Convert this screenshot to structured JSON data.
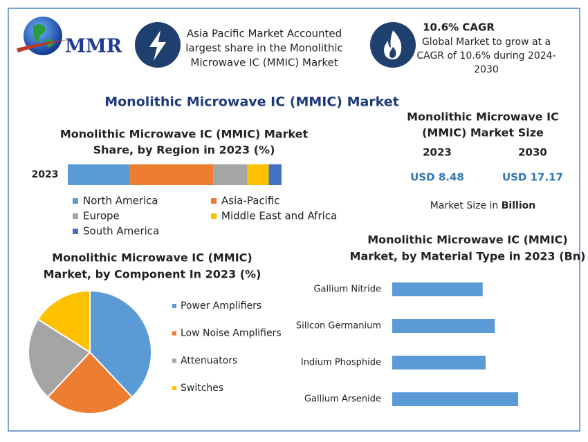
{
  "header": {
    "logo": "MMR",
    "info1": [
      "Asia Pacific Market Accounted",
      "largest share in the Monolithic",
      "Microwave IC (MMIC) Market"
    ],
    "info2_title": "10.6% CAGR",
    "info2": [
      "Global Market to grow at a",
      "CAGR of 10.6% during 2024-",
      "2030"
    ]
  },
  "title": "Monolithic Microwave IC (MMIC) Market",
  "market_size": {
    "title": [
      "Monolithic Microwave IC",
      "(MMIC) Market Size"
    ],
    "years": [
      "2023",
      "2030"
    ],
    "values": [
      "USD 8.48",
      "USD 17.17"
    ],
    "note": [
      "Market Size in",
      "Billion"
    ]
  },
  "chart_data": [
    {
      "type": "stacked-bar",
      "title": [
        "Monolithic Microwave IC (MMIC) Market",
        "Share, by Region in 2023 (%)"
      ],
      "categories": [
        "2023"
      ],
      "series": [
        {
          "name": "North America",
          "color": "#5b9bd5",
          "values": [
            29
          ]
        },
        {
          "name": "Asia-Pacific",
          "color": "#ed7d31",
          "values": [
            39
          ]
        },
        {
          "name": "Europe",
          "color": "#a5a5a5",
          "values": [
            16
          ]
        },
        {
          "name": "Middle East and Africa",
          "color": "#ffc000",
          "values": [
            10
          ]
        },
        {
          "name": "South America",
          "color": "#4472c4",
          "values": [
            6
          ]
        }
      ]
    },
    {
      "type": "pie",
      "title": [
        "Monolithic Microwave IC (MMIC)",
        "Market, by Component In 2023 (%)"
      ],
      "categories": [
        "Power Amplifiers",
        "Low Noise Amplifiers",
        "Attenuators",
        "Switches"
      ],
      "values": [
        38,
        24,
        22,
        16
      ],
      "colors": [
        "#5b9bd5",
        "#ed7d31",
        "#a5a5a5",
        "#ffc000"
      ]
    },
    {
      "type": "hbar",
      "title": [
        "Monolithic Microwave IC (MMIC)",
        "Market, by Material Type in 2023 (Bn)"
      ],
      "categories": [
        "Gallium Nitride",
        "Silicon Germanium",
        "Indium Phosphide",
        "Gallium Arsenide"
      ],
      "values": [
        1.86,
        2.11,
        1.92,
        2.59
      ],
      "color": "#5b9bd5"
    }
  ]
}
